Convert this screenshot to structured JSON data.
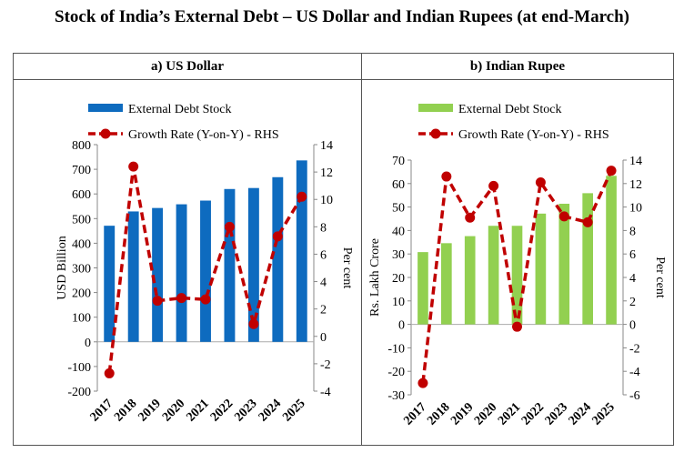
{
  "title": "Stock of India’s External Debt – US Dollar and Indian Rupees (at end-March)",
  "chart_data": [
    {
      "type": "bar+line",
      "panel_title": "a)  US Dollar",
      "categories": [
        "2017",
        "2018",
        "2019",
        "2020",
        "2021",
        "2022",
        "2023",
        "2024",
        "2025"
      ],
      "series": [
        {
          "name": "External Debt Stock",
          "type": "bar",
          "axis": "left",
          "color": "#0e6bbf",
          "values": [
            471,
            529,
            543,
            558,
            573,
            620,
            624,
            668,
            736
          ]
        },
        {
          "name": "Growth Rate (Y-on-Y) - RHS",
          "type": "line",
          "axis": "right",
          "color": "#c00000",
          "values": [
            -2.7,
            12.4,
            2.6,
            2.8,
            2.7,
            8.0,
            0.9,
            7.3,
            10.2
          ]
        }
      ],
      "ylabel": "USD Billion",
      "y2label": "Per cent",
      "ylim": [
        -200,
        800
      ],
      "yticks": [
        -200,
        -100,
        0,
        100,
        200,
        300,
        400,
        500,
        600,
        700,
        800
      ],
      "y2lim": [
        -4,
        14
      ],
      "y2ticks": [
        -4,
        -2,
        0,
        2,
        4,
        6,
        8,
        10,
        12,
        14
      ],
      "legend": "top"
    },
    {
      "type": "bar+line",
      "panel_title": "b)  Indian Rupee",
      "categories": [
        "2017",
        "2018",
        "2019",
        "2020",
        "2021",
        "2022",
        "2023",
        "2024",
        "2025"
      ],
      "series": [
        {
          "name": "External Debt Stock",
          "type": "bar",
          "axis": "left",
          "color": "#92d050",
          "values": [
            30.8,
            34.6,
            37.6,
            42.0,
            42.0,
            47.2,
            51.4,
            55.9,
            63.3
          ]
        },
        {
          "name": "Growth Rate (Y-on-Y) - RHS",
          "type": "line",
          "axis": "right",
          "color": "#c00000",
          "values": [
            -5.0,
            12.6,
            9.1,
            11.8,
            -0.2,
            12.1,
            9.2,
            8.7,
            13.1
          ]
        }
      ],
      "ylabel": "Rs. Lakh Crore",
      "y2label": "Per cent",
      "ylim": [
        -30,
        70
      ],
      "yticks": [
        -30,
        -20,
        -10,
        0,
        10,
        20,
        30,
        40,
        50,
        60,
        70
      ],
      "y2lim": [
        -6,
        14
      ],
      "y2ticks": [
        -6,
        -4,
        -2,
        0,
        2,
        4,
        6,
        8,
        10,
        12,
        14
      ],
      "legend": "top"
    }
  ]
}
